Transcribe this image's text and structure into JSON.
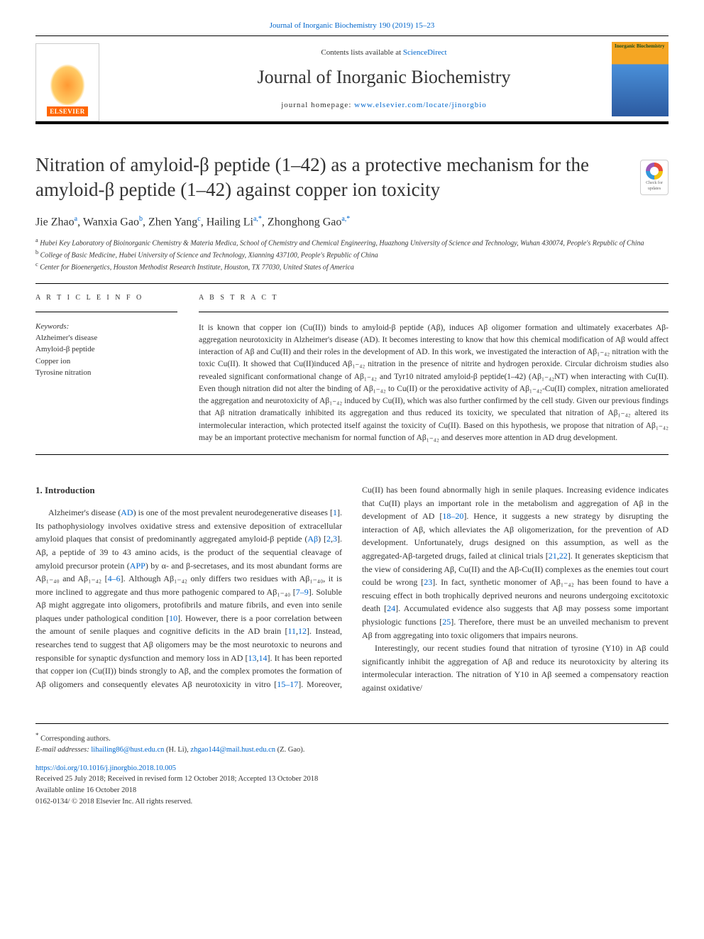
{
  "top_link_prefix": "Journal of Inorganic Biochemistry 190 (2019) 15–23",
  "header": {
    "contents_prefix": "Contents lists available at ",
    "contents_link": "ScienceDirect",
    "journal_name": "Journal of Inorganic Biochemistry",
    "homepage_prefix": "journal homepage: ",
    "homepage_link": "www.elsevier.com/locate/jinorgbio",
    "publisher_logo": "ELSEVIER",
    "cover_label": "Inorganic Biochemistry"
  },
  "article": {
    "title": "Nitration of amyloid-β peptide (1–42) as a protective mechanism for the amyloid-β peptide (1–42) against copper ion toxicity",
    "check_badge": "Check for updates",
    "authors_html": "Jie Zhao<sup>a</sup>, Wanxia Gao<sup>b</sup>, Zhen Yang<sup>c</sup>, Hailing Li<sup>a,*</sup>, Zhonghong Gao<sup>a,*</sup>",
    "affiliations": {
      "a": "Hubei Key Laboratory of Bioinorganic Chemistry & Materia Medica, School of Chemistry and Chemical Engineering, Huazhong University of Science and Technology, Wuhan 430074, People's Republic of China",
      "b": "College of Basic Medicine, Hubei University of Science and Technology, Xianning 437100, People's Republic of China",
      "c": "Center for Bioenergetics, Houston Methodist Research Institute, Houston, TX 77030, United States of America"
    }
  },
  "info": {
    "article_info_label": "A R T I C L E  I N F O",
    "abstract_label": "A B S T R A C T",
    "keywords_label": "Keywords:",
    "keywords": [
      "Alzheimer's disease",
      "Amyloid-β peptide",
      "Copper ion",
      "Tyrosine nitration"
    ]
  },
  "abstract": "It is known that copper ion (Cu(II)) binds to amyloid-β peptide (Aβ), induces Aβ oligomer formation and ultimately exacerbates Aβ-aggregation neurotoxicity in Alzheimer's disease (AD). It becomes interesting to know that how this chemical modification of Aβ would affect interaction of Aβ and Cu(II) and their roles in the development of AD. In this work, we investigated the interaction of Aβ₁₋₄₂ nitration with the toxic Cu(II). It showed that Cu(II)induced Aβ₁₋₄₂ nitration in the presence of nitrite and hydrogen peroxide. Circular dichroism studies also revealed significant conformational change of Aβ₁₋₄₂ and Tyr10 nitrated amyloid-β peptide(1–42) (Aβ₁₋₄₂NT) when interacting with Cu(II). Even though nitration did not alter the binding of Aβ₁₋₄₂ to Cu(II) or the peroxidative activity of Aβ₁₋₄₂-Cu(II) complex, nitration ameliorated the aggregation and neurotoxicity of Aβ₁₋₄₂ induced by Cu(II), which was also further confirmed by the cell study. Given our previous findings that Aβ nitration dramatically inhibited its aggregation and thus reduced its toxicity, we speculated that nitration of Aβ₁₋₄₂ altered its intermolecular interaction, which protected itself against the toxicity of Cu(II). Based on this hypothesis, we propose that nitration of Aβ₁₋₄₂ may be an important protective mechanism for normal function of Aβ₁₋₄₂ and deserves more attention in AD drug development.",
  "body": {
    "intro_heading": "1. Introduction",
    "p1": "Alzheimer's disease (<a>AD</a>) is one of the most prevalent neurodegenerative diseases [<a>1</a>]. Its pathophysiology involves oxidative stress and extensive deposition of extracellular amyloid plaques that consist of predominantly aggregated amyloid-β peptide (<a>Aβ</a>) [<a>2</a>,<a>3</a>]. Aβ, a peptide of 39 to 43 amino acids, is the product of the sequential cleavage of amyloid precursor protein (<a>APP</a>) by α- and β-secretases, and its most abundant forms are Aβ₁₋₄₀ and Aβ₁₋₄₂ [<a>4–6</a>]. Although Aβ₁₋₄₂ only differs two residues with Aβ₁₋₄₀, it is more inclined to aggregate and thus more pathogenic compared to Aβ₁₋₄₀ [<a>7–9</a>]. Soluble Aβ might aggregate into oligomers, protofibrils and mature fibrils, and even into senile plaques under pathological condition [<a>10</a>]. However, there is a poor correlation between the amount of senile plaques and cognitive deficits in the AD brain [<a>11</a>,<a>12</a>]. Instead, researches tend to suggest that Aβ oligomers may be the most neurotoxic to neurons and responsible for synaptic dysfunction and memory loss in AD [<a>13</a>,<a>14</a>]. It has been reported that copper ion (Cu(II)) binds strongly to Aβ, and the complex promotes the formation of Aβ oligomers and consequently elevates Aβ neurotoxicity in vitro [<a>15–17</a>]. Moreover, Cu(II) has been found abnormally high in senile plaques. Increasing evidence indicates that Cu(II) plays an important role in the metabolism and aggregation of Aβ in the development of AD [<a>18–20</a>]. Hence, it suggests a new strategy by disrupting the interaction of Aβ, which alleviates the Aβ oligomerization, for the prevention of AD development. Unfortunately, drugs designed on this assumption, as well as the aggregated-Aβ-targeted drugs, failed at clinical trials [<a>21</a>,<a>22</a>]. It generates skepticism that the view of considering Aβ, Cu(II) and the Aβ-Cu(II) complexes as the enemies tout court could be wrong [<a>23</a>]. In fact, synthetic monomer of Aβ₁₋₄₂ has been found to have a rescuing effect in both trophically deprived neurons and neurons undergoing excitotoxic death [<a>24</a>]. Accumulated evidence also suggests that Aβ may possess some important physiologic functions [<a>25</a>]. Therefore, there must be an unveiled mechanism to prevent Aβ from aggregating into toxic oligomers that impairs neurons.",
    "p2": "Interestingly, our recent studies found that nitration of tyrosine (Y10) in Aβ could significantly inhibit the aggregation of Aβ and reduce its neurotoxicity by altering its intermolecular interaction. The nitration of Y10 in Aβ seemed a compensatory reaction against oxidative/"
  },
  "footer": {
    "corresponding": "Corresponding authors.",
    "email_label": "E-mail addresses: ",
    "email1": "lihailing86@hust.edu.cn",
    "email1_name": " (H. Li), ",
    "email2": "zhgao144@mail.hust.edu.cn",
    "email2_name": " (Z. Gao).",
    "doi": "https://doi.org/10.1016/j.jinorgbio.2018.10.005",
    "received": "Received 25 July 2018; Received in revised form 12 October 2018; Accepted 13 October 2018",
    "available": "Available online 16 October 2018",
    "copyright": "0162-0134/ © 2018 Elsevier Inc. All rights reserved."
  },
  "colors": {
    "link": "#0066cc",
    "text": "#333333",
    "elsevier_orange": "#ff6600",
    "border": "#000000"
  }
}
